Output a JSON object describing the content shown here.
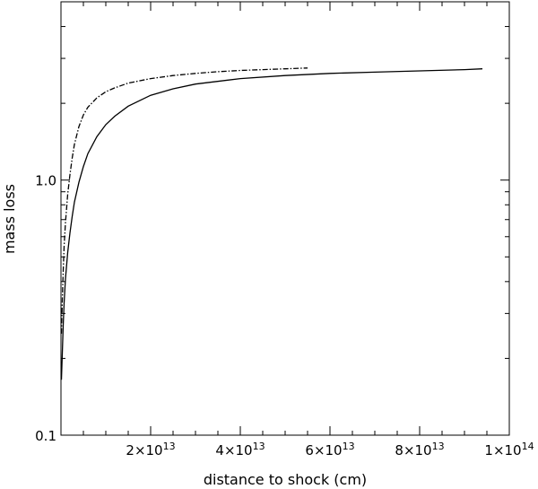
{
  "chart_data": {
    "type": "line",
    "title": "",
    "xlabel": "distance to shock (cm)",
    "ylabel": "mass loss",
    "xlim": [
      0,
      100000000000000.0
    ],
    "ylim": [
      0.1,
      5.0
    ],
    "yscale": "log",
    "grid": false,
    "legend": "none",
    "x_ticks": [
      {
        "value": 20000000000000.0,
        "mantissa": "2",
        "exponent": "13"
      },
      {
        "value": 40000000000000.0,
        "mantissa": "4",
        "exponent": "13"
      },
      {
        "value": 60000000000000.0,
        "mantissa": "6",
        "exponent": "13"
      },
      {
        "value": 80000000000000.0,
        "mantissa": "8",
        "exponent": "13"
      },
      {
        "value": 100000000000000.0,
        "mantissa": "1",
        "exponent": "14"
      }
    ],
    "y_ticks": [
      {
        "value": 0.1,
        "label": "0.1"
      },
      {
        "value": 1.0,
        "label": "1.0"
      }
    ],
    "series": [
      {
        "style": "solid",
        "x": [
          100000000000.0,
          300000000000.0,
          500000000000.0,
          700000000000.0,
          1000000000000.0,
          1500000000000.0,
          2000000000000.0,
          2500000000000.0,
          3000000000000.0,
          4000000000000.0,
          5000000000000.0,
          6000000000000.0,
          8000000000000.0,
          10000000000000.0,
          12000000000000.0,
          15000000000000.0,
          20000000000000.0,
          25000000000000.0,
          30000000000000.0,
          40000000000000.0,
          50000000000000.0,
          60000000000000.0,
          70000000000000.0,
          80000000000000.0,
          90000000000000.0,
          94000000000000.0
        ],
        "y": [
          0.165,
          0.21,
          0.27,
          0.33,
          0.41,
          0.52,
          0.62,
          0.72,
          0.82,
          0.98,
          1.13,
          1.27,
          1.48,
          1.65,
          1.78,
          1.95,
          2.15,
          2.28,
          2.38,
          2.5,
          2.57,
          2.62,
          2.65,
          2.68,
          2.71,
          2.73
        ]
      },
      {
        "style": "dash-dot",
        "x": [
          100000000000.0,
          300000000000.0,
          500000000000.0,
          700000000000.0,
          1000000000000.0,
          1500000000000.0,
          2000000000000.0,
          2500000000000.0,
          3000000000000.0,
          4000000000000.0,
          5000000000000.0,
          6000000000000.0,
          8000000000000.0,
          10000000000000.0,
          12000000000000.0,
          15000000000000.0,
          20000000000000.0,
          25000000000000.0,
          30000000000000.0,
          35000000000000.0,
          40000000000000.0,
          45000000000000.0,
          50000000000000.0,
          55000000000000.0
        ],
        "y": [
          0.25,
          0.34,
          0.44,
          0.55,
          0.68,
          0.88,
          1.05,
          1.22,
          1.38,
          1.62,
          1.8,
          1.93,
          2.1,
          2.22,
          2.3,
          2.4,
          2.5,
          2.57,
          2.62,
          2.66,
          2.69,
          2.71,
          2.73,
          2.75
        ]
      }
    ]
  }
}
